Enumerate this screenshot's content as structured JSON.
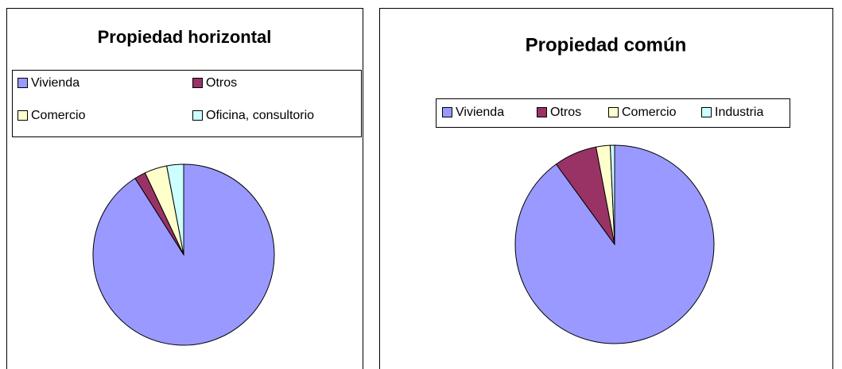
{
  "chart_data": [
    {
      "type": "pie",
      "title": "Propiedad horizontal",
      "categories": [
        "Vivienda",
        "Otros",
        "Comercio",
        "Oficina, consultorio"
      ],
      "values": [
        91,
        2,
        4,
        3
      ],
      "colors": [
        "#9999ff",
        "#993366",
        "#ffffcc",
        "#ccffff"
      ]
    },
    {
      "type": "pie",
      "title": "Propiedad común",
      "categories": [
        "Vivienda",
        "Otros",
        "Comercio",
        "Industria"
      ],
      "values": [
        90,
        7,
        2.3,
        0.7
      ],
      "colors": [
        "#9999ff",
        "#993366",
        "#ffffcc",
        "#ccffff"
      ]
    }
  ]
}
